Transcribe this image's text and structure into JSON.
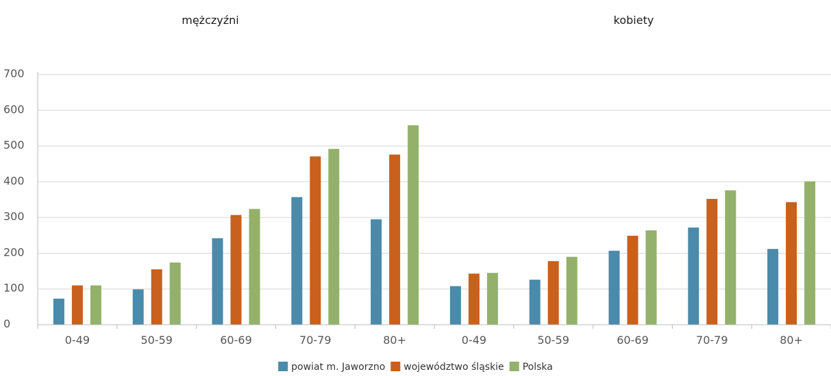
{
  "chart_data": {
    "type": "bar",
    "group_titles": [
      "mężczyźni",
      "kobiety"
    ],
    "categories": [
      "0-49",
      "50-59",
      "60-69",
      "70-79",
      "80+",
      "0-49",
      "50-59",
      "60-69",
      "70-79",
      "80+"
    ],
    "series": [
      {
        "name": "powiat m. Jaworzno",
        "color": "#4a8aaa",
        "values": [
          73,
          99,
          242,
          357,
          295,
          108,
          126,
          207,
          272,
          212
        ]
      },
      {
        "name": "województwo śląskie",
        "color": "#c8601e",
        "values": [
          110,
          155,
          307,
          471,
          476,
          143,
          178,
          249,
          352,
          343
        ]
      },
      {
        "name": "Polska",
        "color": "#93b16a",
        "values": [
          110,
          174,
          324,
          492,
          558,
          145,
          190,
          264,
          376,
          401
        ]
      }
    ],
    "yticks": [
      "0",
      "100",
      "200",
      "300",
      "400",
      "500",
      "600",
      "700"
    ],
    "ylim": [
      0,
      700
    ],
    "grid": true,
    "legend_position": "bottom-center"
  }
}
